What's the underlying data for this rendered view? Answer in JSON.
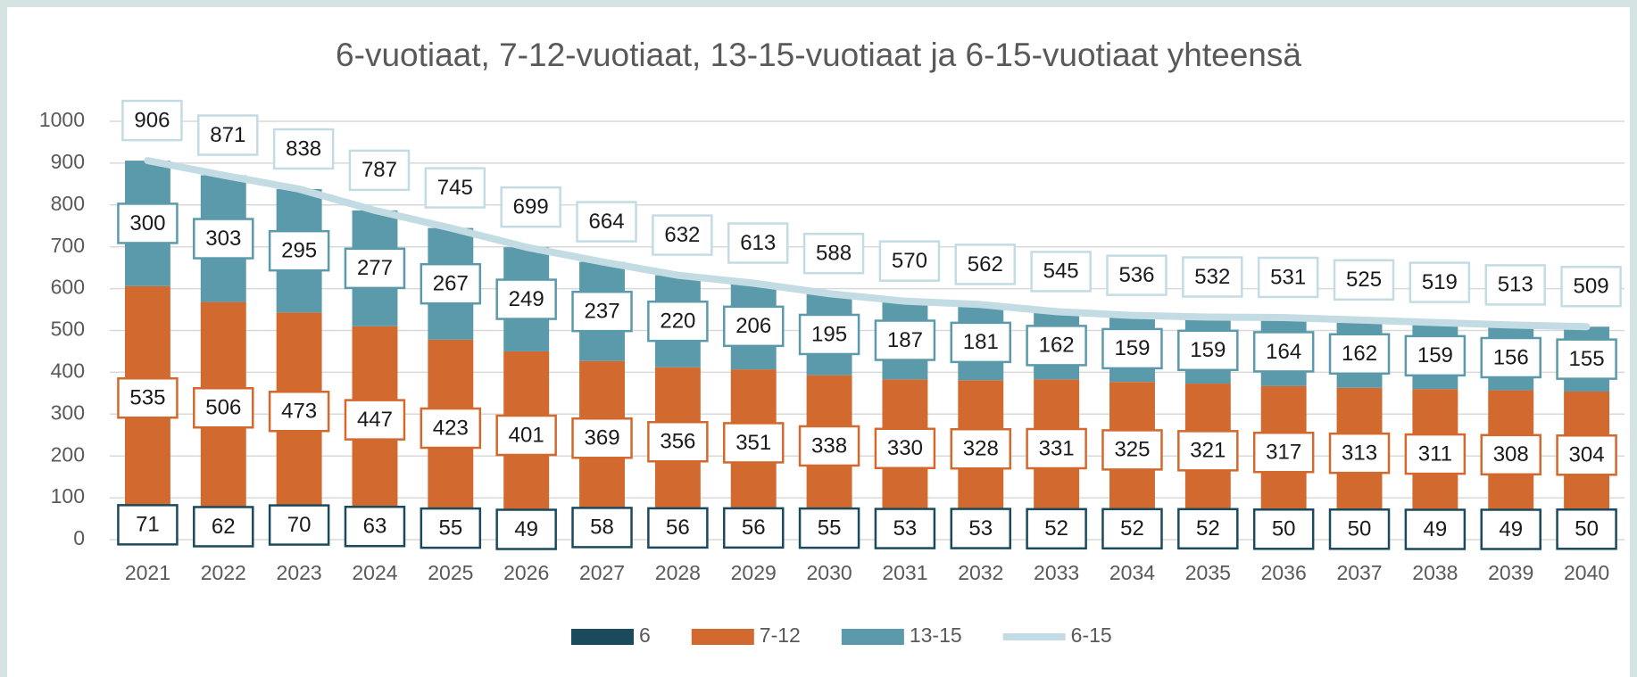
{
  "chart_data": {
    "type": "bar",
    "title": "6-vuotiaat, 7-12-vuotiaat, 13-15-vuotiaat ja 6-15-vuotiaat yhteensä",
    "categories": [
      "2021",
      "2022",
      "2023",
      "2024",
      "2025",
      "2026",
      "2027",
      "2028",
      "2029",
      "2030",
      "2031",
      "2032",
      "2033",
      "2034",
      "2035",
      "2036",
      "2037",
      "2038",
      "2039",
      "2040"
    ],
    "series": [
      {
        "name": "6",
        "color": "#1b4a5c",
        "values": [
          71,
          62,
          70,
          63,
          55,
          49,
          58,
          56,
          56,
          55,
          53,
          53,
          52,
          52,
          52,
          50,
          50,
          49,
          49,
          50
        ]
      },
      {
        "name": "7-12",
        "color": "#d2692e",
        "values": [
          535,
          506,
          473,
          447,
          423,
          401,
          369,
          356,
          351,
          338,
          330,
          328,
          331,
          325,
          321,
          317,
          313,
          311,
          308,
          304
        ]
      },
      {
        "name": "13-15",
        "color": "#5b9aab",
        "values": [
          300,
          303,
          295,
          277,
          267,
          249,
          237,
          220,
          206,
          195,
          187,
          181,
          162,
          159,
          159,
          164,
          162,
          159,
          156,
          155
        ]
      },
      {
        "name": "6-15",
        "type": "line",
        "color": "#c3dce4",
        "values": [
          906,
          871,
          838,
          787,
          745,
          699,
          664,
          632,
          613,
          588,
          570,
          562,
          545,
          536,
          532,
          531,
          525,
          519,
          513,
          509
        ]
      }
    ],
    "stacked": true,
    "ylim": [
      0,
      1000
    ],
    "yticks": [
      0,
      100,
      200,
      300,
      400,
      500,
      600,
      700,
      800,
      900,
      1000
    ],
    "grid": true,
    "legend": "bottom"
  }
}
